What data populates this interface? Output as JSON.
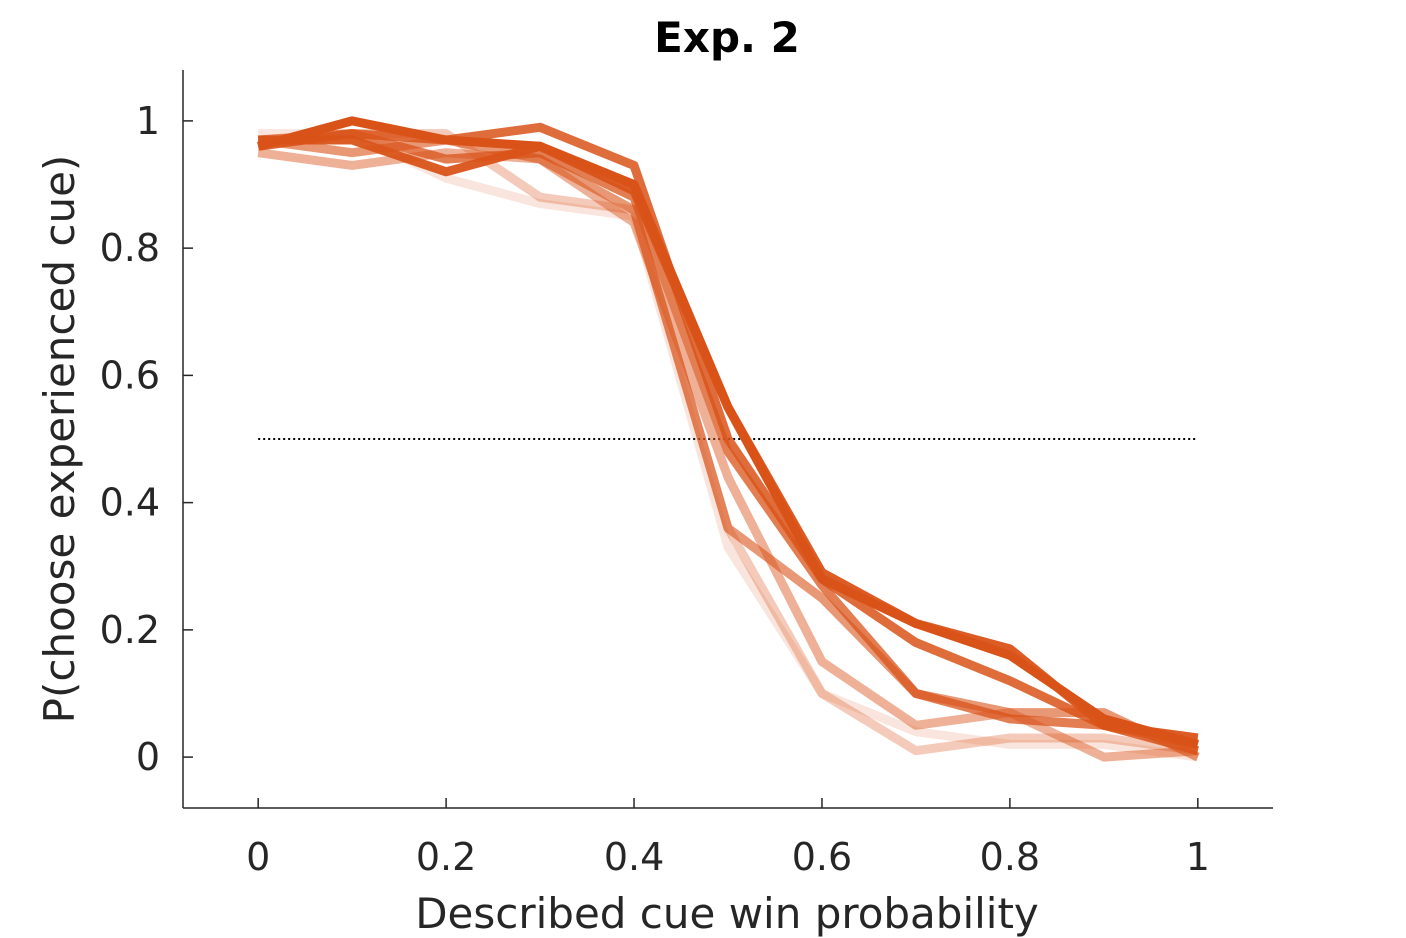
{
  "chart_data": {
    "type": "line",
    "title": "Exp. 2",
    "xlabel": "Described cue win probability",
    "ylabel": "P(choose experienced cue)",
    "xlim": [
      -0.08,
      1.08
    ],
    "ylim": [
      -0.08,
      1.08
    ],
    "xticks": [
      0,
      0.2,
      0.4,
      0.6,
      0.8,
      1
    ],
    "xtick_labels": [
      "0",
      "0.2",
      "0.4",
      "0.6",
      "0.8",
      "1"
    ],
    "yticks": [
      0,
      0.2,
      0.4,
      0.6,
      0.8,
      1
    ],
    "ytick_labels": [
      "0",
      "0.2",
      "0.4",
      "0.6",
      "0.8",
      "1"
    ],
    "grid": false,
    "reference_line": {
      "y": 0.5,
      "x_range": [
        0,
        1
      ],
      "style": "dotted",
      "color": "#000000"
    },
    "x": [
      0,
      0.1,
      0.2,
      0.3,
      0.4,
      0.5,
      0.6,
      0.7,
      0.8,
      0.9,
      1
    ],
    "series": [
      {
        "color": "#D95319",
        "opacity": 0.15,
        "values": [
          0.98,
          0.98,
          0.91,
          0.87,
          0.85,
          0.33,
          0.1,
          0.04,
          0.02,
          0.02,
          0.0
        ]
      },
      {
        "color": "#D95319",
        "opacity": 0.3,
        "values": [
          0.96,
          0.98,
          0.98,
          0.88,
          0.86,
          0.36,
          0.1,
          0.01,
          0.03,
          0.03,
          0.01
        ]
      },
      {
        "color": "#D95319",
        "opacity": 0.45,
        "values": [
          0.95,
          0.93,
          0.95,
          0.94,
          0.84,
          0.44,
          0.15,
          0.05,
          0.07,
          0.0,
          0.01
        ]
      },
      {
        "color": "#D95319",
        "opacity": 0.6,
        "values": [
          0.97,
          0.95,
          0.97,
          0.94,
          0.86,
          0.36,
          0.25,
          0.1,
          0.07,
          0.07,
          0.0
        ]
      },
      {
        "color": "#D95319",
        "opacity": 0.75,
        "values": [
          0.97,
          0.98,
          0.94,
          0.95,
          0.88,
          0.48,
          0.27,
          0.1,
          0.06,
          0.05,
          0.02
        ]
      },
      {
        "color": "#D95319",
        "opacity": 0.85,
        "values": [
          0.96,
          0.98,
          0.97,
          0.99,
          0.93,
          0.5,
          0.28,
          0.18,
          0.12,
          0.05,
          0.01
        ]
      },
      {
        "color": "#D95319",
        "opacity": 0.95,
        "values": [
          0.97,
          0.97,
          0.92,
          0.96,
          0.89,
          0.55,
          0.29,
          0.21,
          0.17,
          0.05,
          0.03
        ]
      },
      {
        "color": "#D95319",
        "opacity": 1.0,
        "values": [
          0.96,
          1.0,
          0.97,
          0.96,
          0.9,
          0.55,
          0.28,
          0.21,
          0.16,
          0.06,
          0.02
        ]
      }
    ]
  }
}
